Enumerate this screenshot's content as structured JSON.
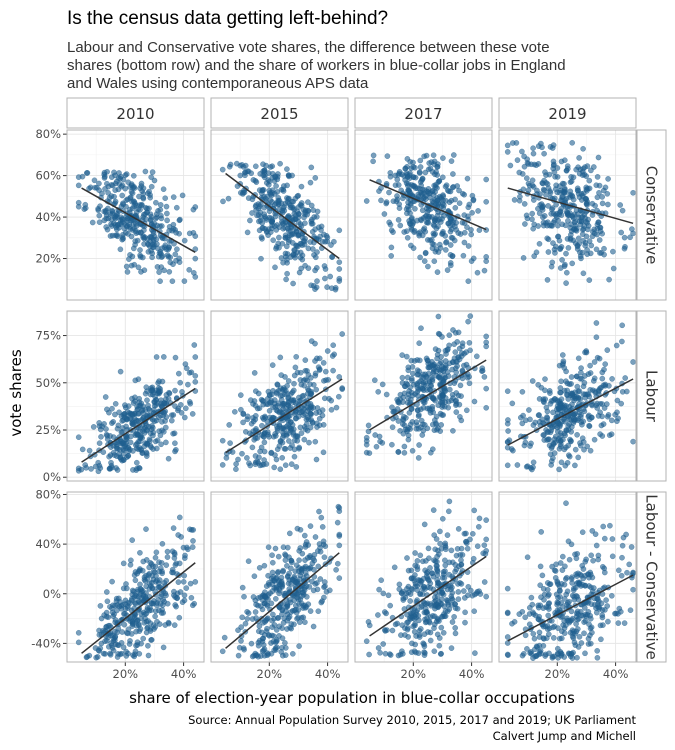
{
  "chart_data": {
    "type": "scatter",
    "title": "Is the census data getting left-behind?",
    "subtitle": [
      "Labour and Conservative vote shares, the difference between these vote",
      "shares (bottom row) and the share of workers in blue-collar jobs in England",
      "and Wales using contemporaneous APS data"
    ],
    "xlabel": "share of election-year population in blue-collar occupations",
    "ylabel": "vote shares",
    "caption": [
      "Source: Annual Population Survey 2010, 2015, 2017 and 2019; UK Parliament",
      "Calvert Jump and Michell"
    ],
    "facet_columns": [
      "2010",
      "2015",
      "2017",
      "2019"
    ],
    "xlim": [
      0,
      47
    ],
    "x_ticks": [
      20,
      40
    ],
    "x_tick_labels": [
      "20%",
      "40%"
    ],
    "point_color": "#1f5f8f",
    "line_color": "#333333",
    "rows": [
      {
        "label": "Conservative",
        "ylim": [
          0,
          82
        ],
        "y_ticks": [
          20,
          40,
          60,
          80
        ],
        "y_tick_labels": [
          "20%",
          "40%",
          "60%",
          "80%"
        ],
        "panels": [
          {
            "year": "2010",
            "fit": {
              "x": [
                5,
                44
              ],
              "y": [
                54,
                23
              ]
            },
            "cloud": {
              "n": 360,
              "x_mean": 25,
              "x_sd": 8.5,
              "x_min": 4,
              "x_max": 44,
              "y_min": 6,
              "y_max": 62,
              "noise": 11,
              "seed": 11
            }
          },
          {
            "year": "2015",
            "fit": {
              "x": [
                5,
                44
              ],
              "y": [
                61,
                20
              ]
            },
            "cloud": {
              "n": 360,
              "x_mean": 25,
              "x_sd": 8.5,
              "x_min": 4,
              "x_max": 44,
              "y_min": 5,
              "y_max": 66,
              "noise": 11,
              "seed": 12
            }
          },
          {
            "year": "2017",
            "fit": {
              "x": [
                5,
                45
              ],
              "y": [
                58,
                34
              ]
            },
            "cloud": {
              "n": 360,
              "x_mean": 26,
              "x_sd": 8.5,
              "x_min": 4,
              "x_max": 45,
              "y_min": 7,
              "y_max": 70,
              "noise": 12,
              "seed": 13
            }
          },
          {
            "year": "2019",
            "fit": {
              "x": [
                3,
                46
              ],
              "y": [
                54,
                37
              ]
            },
            "cloud": {
              "n": 360,
              "x_mean": 24,
              "x_sd": 9,
              "x_min": 3,
              "x_max": 46,
              "y_min": 6,
              "y_max": 76,
              "noise": 14,
              "seed": 14
            }
          }
        ]
      },
      {
        "label": "Labour",
        "ylim": [
          -2,
          88
        ],
        "y_ticks": [
          0,
          25,
          50,
          75
        ],
        "y_tick_labels": [
          "0%",
          "25%",
          "50%",
          "75%"
        ],
        "panels": [
          {
            "year": "2010",
            "fit": {
              "x": [
                5,
                44
              ],
              "y": [
                8,
                47
              ]
            },
            "cloud": {
              "n": 360,
              "x_mean": 25,
              "x_sd": 8.5,
              "x_min": 4,
              "x_max": 44,
              "y_min": 3,
              "y_max": 72,
              "noise": 11,
              "seed": 21
            }
          },
          {
            "year": "2015",
            "fit": {
              "x": [
                5,
                45
              ],
              "y": [
                13,
                52
              ]
            },
            "cloud": {
              "n": 360,
              "x_mean": 25,
              "x_sd": 8.5,
              "x_min": 4,
              "x_max": 45,
              "y_min": 4,
              "y_max": 82,
              "noise": 12,
              "seed": 22
            }
          },
          {
            "year": "2017",
            "fit": {
              "x": [
                5,
                45
              ],
              "y": [
                25,
                62
              ]
            },
            "cloud": {
              "n": 360,
              "x_mean": 26,
              "x_sd": 8.5,
              "x_min": 4,
              "x_max": 45,
              "y_min": 10,
              "y_max": 86,
              "noise": 12,
              "seed": 23
            }
          },
          {
            "year": "2019",
            "fit": {
              "x": [
                3,
                46
              ],
              "y": [
                17,
                52
              ]
            },
            "cloud": {
              "n": 360,
              "x_mean": 24,
              "x_sd": 9,
              "x_min": 3,
              "x_max": 46,
              "y_min": 4,
              "y_max": 84,
              "noise": 13,
              "seed": 24
            }
          }
        ]
      },
      {
        "label": "Labour - Conservative",
        "ylim": [
          -55,
          82
        ],
        "y_ticks": [
          -40,
          0,
          40,
          80
        ],
        "y_tick_labels": [
          "-40%",
          "0%",
          "40%",
          "80%"
        ],
        "panels": [
          {
            "year": "2010",
            "fit": {
              "x": [
                5,
                44
              ],
              "y": [
                -48,
                25
              ]
            },
            "cloud": {
              "n": 360,
              "x_mean": 25,
              "x_sd": 8.5,
              "x_min": 4,
              "x_max": 44,
              "y_min": -52,
              "y_max": 62,
              "noise": 20,
              "seed": 31
            }
          },
          {
            "year": "2015",
            "fit": {
              "x": [
                5,
                44
              ],
              "y": [
                -44,
                33
              ]
            },
            "cloud": {
              "n": 360,
              "x_mean": 25,
              "x_sd": 8.5,
              "x_min": 4,
              "x_max": 44,
              "y_min": -52,
              "y_max": 76,
              "noise": 21,
              "seed": 32
            }
          },
          {
            "year": "2017",
            "fit": {
              "x": [
                5,
                45
              ],
              "y": [
                -34,
                30
              ]
            },
            "cloud": {
              "n": 360,
              "x_mean": 26,
              "x_sd": 8.5,
              "x_min": 4,
              "x_max": 45,
              "y_min": -50,
              "y_max": 78,
              "noise": 22,
              "seed": 33
            }
          },
          {
            "year": "2019",
            "fit": {
              "x": [
                3,
                46
              ],
              "y": [
                -38,
                15
              ]
            },
            "cloud": {
              "n": 360,
              "x_mean": 24,
              "x_sd": 9,
              "x_min": 3,
              "x_max": 46,
              "y_min": -52,
              "y_max": 78,
              "noise": 24,
              "seed": 34
            }
          }
        ]
      }
    ]
  }
}
